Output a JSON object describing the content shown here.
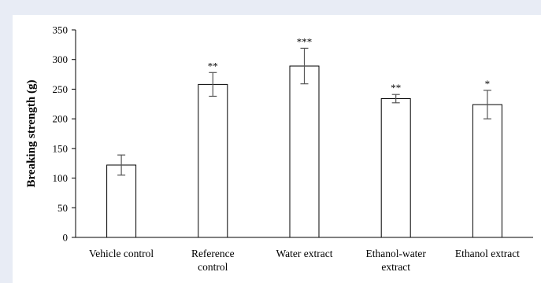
{
  "chart_data": {
    "type": "bar",
    "title": "",
    "xlabel": "",
    "ylabel": "Breaking strength (g)",
    "ylim": [
      0,
      350
    ],
    "yticks": [
      "0",
      "50",
      "100",
      "150",
      "200",
      "250",
      "300",
      "350"
    ],
    "categories": [
      [
        "Vehicle control"
      ],
      [
        "Reference",
        "control"
      ],
      [
        "Water extract"
      ],
      [
        "Ethanol-water",
        "extract"
      ],
      [
        "Ethanol extract"
      ]
    ],
    "values": [
      122,
      258,
      289,
      234,
      224
    ],
    "errors": [
      17,
      20,
      30,
      7,
      24
    ],
    "significance": [
      "",
      "**",
      "***",
      "**",
      "*"
    ],
    "colors": {
      "bar_fill": "#ffffff",
      "bar_stroke": "#000000",
      "error_bar": "#555555",
      "background": "#e8ecf5"
    },
    "grid": false,
    "legend": "none"
  }
}
